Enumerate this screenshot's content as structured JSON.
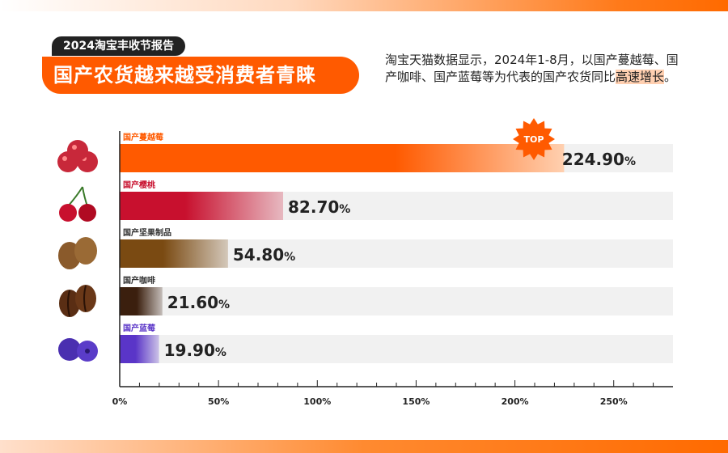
{
  "header": {
    "tag": "2024淘宝丰收节报告",
    "headline": "国产农货越来越受消费者青睐",
    "description_main": "淘宝天猫数据显示，2024年1-8月，以国产蔓越莓、国产咖啡、国产蓝莓等为代表的国产农货同比",
    "description_highlight": "高速增长",
    "description_end": "。"
  },
  "badge": {
    "label": "TOP"
  },
  "colors": {
    "accent": "#ff6a00",
    "track": "#f1f1f1"
  },
  "chart_data": {
    "type": "bar",
    "orientation": "horizontal",
    "categories": [
      "国产蔓越莓",
      "国产樱桃",
      "国产坚果制品",
      "国产咖啡",
      "国产蓝莓"
    ],
    "values": [
      224.9,
      82.7,
      54.8,
      21.6,
      19.9
    ],
    "value_labels": [
      "224.90",
      "82.70",
      "54.80",
      "21.60",
      "19.90"
    ],
    "unit": "%",
    "xlim": [
      0,
      280
    ],
    "xticks": [
      0,
      50,
      100,
      150,
      200,
      250
    ],
    "xtick_labels": [
      "0%",
      "50%",
      "100%",
      "150%",
      "200%",
      "250%"
    ],
    "series_colors": [
      "#ff5a00",
      "#c8102e",
      "#7a4a12",
      "#3b1f0e",
      "#5a35c8"
    ],
    "label_colors": [
      "#ff5a00",
      "#c8102e",
      "#333333",
      "#333333",
      "#5a35c8"
    ],
    "icons": [
      "cranberry-icon",
      "cherry-icon",
      "nut-icon",
      "coffee-bean-icon",
      "blueberry-icon"
    ]
  }
}
